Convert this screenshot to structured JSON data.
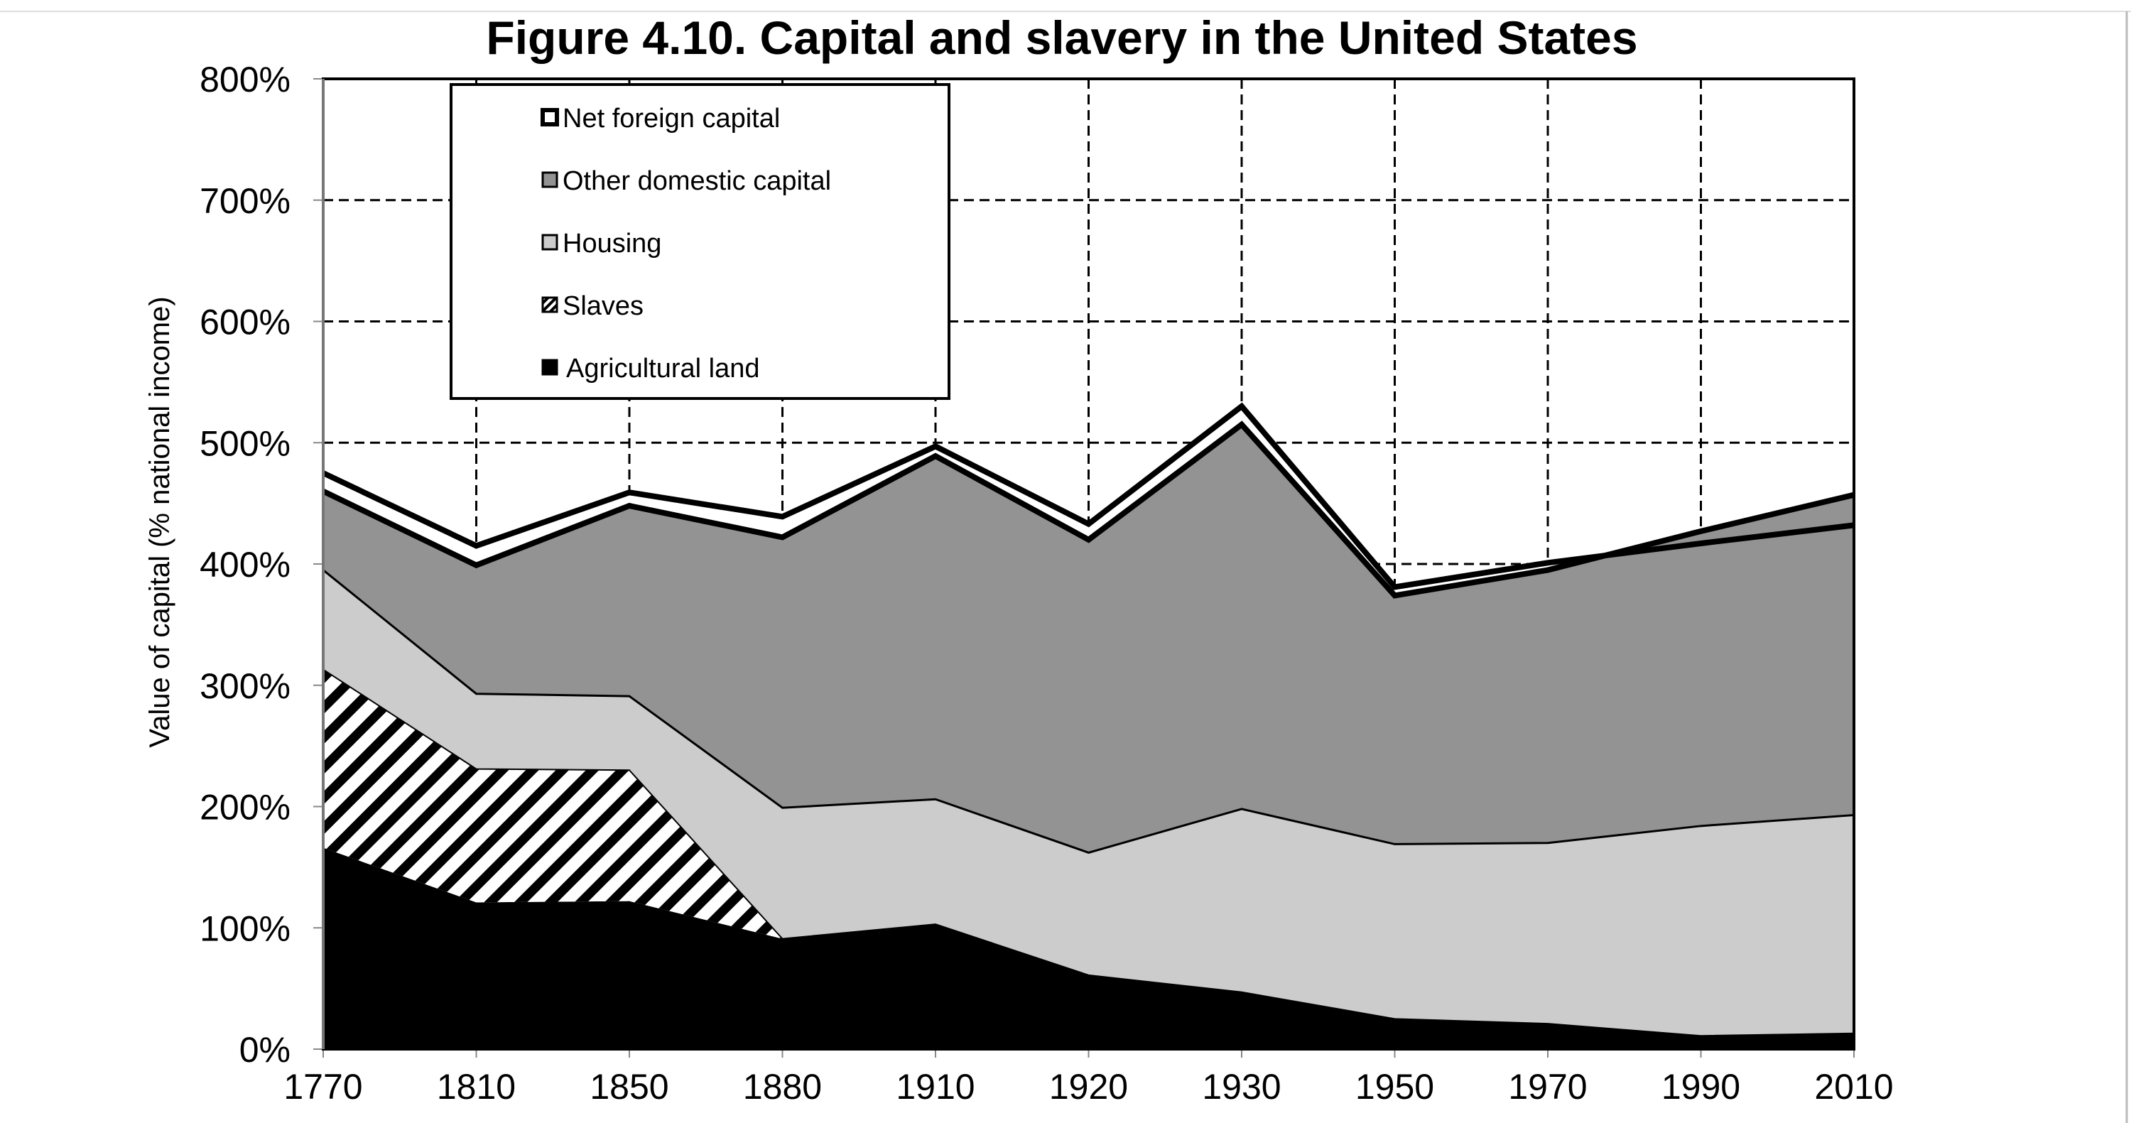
{
  "chart_data": {
    "type": "area",
    "stacked": true,
    "title": "Figure 4.10. Capital and slavery in the United States",
    "xlabel": "",
    "ylabel": "Value of capital (% national income)",
    "ylim": [
      0,
      800
    ],
    "yticks": [
      "0%",
      "100%",
      "200%",
      "300%",
      "400%",
      "500%",
      "600%",
      "700%",
      "800%"
    ],
    "categories": [
      "1770",
      "1810",
      "1850",
      "1880",
      "1910",
      "1920",
      "1930",
      "1950",
      "1970",
      "1990",
      "2010"
    ],
    "grid": true,
    "legend_position": "top-left",
    "series": [
      {
        "name": "Agricultural land",
        "fill": "#000000",
        "values": [
          166,
          121,
          122,
          91,
          103,
          61,
          47,
          25,
          21,
          11,
          13
        ]
      },
      {
        "name": "Slaves",
        "fill": "hatch",
        "values": [
          147,
          110,
          108,
          0,
          0,
          0,
          0,
          0,
          0,
          0,
          0
        ]
      },
      {
        "name": "Housing",
        "fill": "#cccccc",
        "values": [
          82,
          62,
          61,
          108,
          103,
          101,
          151,
          144,
          149,
          173,
          180
        ]
      },
      {
        "name": "Other domestic capital",
        "fill": "#939393",
        "values": [
          65,
          106,
          157,
          223,
          283,
          258,
          317,
          205,
          225,
          243,
          264
        ]
      },
      {
        "name": "Net foreign capital",
        "fill": "#ffffff",
        "values": [
          15,
          16,
          11,
          17,
          8,
          13,
          15,
          7,
          6,
          -10,
          -25
        ]
      }
    ],
    "legend_order": [
      "Net foreign capital",
      "Other domestic capital",
      "Housing",
      "Slaves",
      "Agricultural land"
    ]
  }
}
